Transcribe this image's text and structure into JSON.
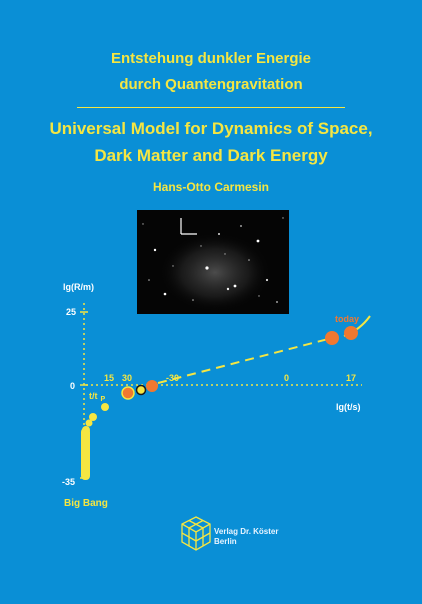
{
  "cover": {
    "title_de_line1": "Entstehung dunkler Energie",
    "title_de_line2": "durch Quantengravitation",
    "title_en_line1": "Universal Model for Dynamics of Space,",
    "title_en_line2": "Dark Matter and Dark Energy",
    "author": "Hans-Otto Carmesin"
  },
  "diagram": {
    "y_axis_label": "lg(R/m)",
    "y_tick_top": "25",
    "y_tick_zero": "0",
    "y_tick_bottom": "-35",
    "tp_label": "t/t",
    "tp_subscript": "P",
    "tick_15": "15",
    "tick_30": "30",
    "tick_neg30": "-30",
    "tick_0": "0",
    "tick_17": "17",
    "x_axis_label": "lg(t/s)",
    "today_label": "today",
    "big_bang_label": "Big Bang"
  },
  "publisher": {
    "line1": "Verlag Dr. Köster",
    "line2": "Berlin"
  },
  "colors": {
    "background": "#0a8fd6",
    "title_yellow": "#f5e642",
    "orange": "#f07830",
    "axis_yellow": "#f5e642"
  }
}
